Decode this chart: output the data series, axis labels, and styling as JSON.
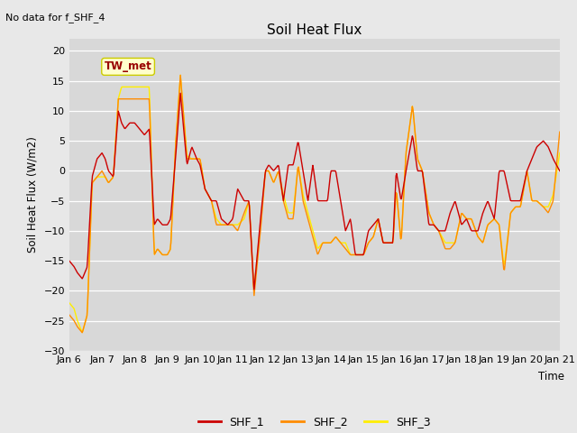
{
  "title": "Soil Heat Flux",
  "subtitle": "No data for f_SHF_4",
  "ylabel": "Soil Heat Flux (W/m2)",
  "xlabel": "Time",
  "ylim": [
    -30,
    22
  ],
  "yticks": [
    -30,
    -25,
    -20,
    -15,
    -10,
    -5,
    0,
    5,
    10,
    15,
    20
  ],
  "line_colors": {
    "SHF_1": "#cc0000",
    "SHF_2": "#ff8c00",
    "SHF_3": "#ffee00"
  },
  "xtick_labels": [
    "Jan 6",
    "Jan 7",
    "Jan 8",
    "Jan 9",
    "Jan 10",
    "Jan 11",
    "Jan 12",
    "Jan 13",
    "Jan 14",
    "Jan 15",
    "Jan 16",
    "Jan 17",
    "Jan 18",
    "Jan 19",
    "Jan 20",
    "Jan 21"
  ],
  "annotation_text": "TW_met",
  "annotation_color": "#990000",
  "annotation_box_facecolor": "#ffffcc",
  "annotation_box_edgecolor": "#cccc00",
  "background_color": "#e8e8e8",
  "plot_bg_color": "#d8d8d8",
  "figsize": [
    6.4,
    4.8
  ],
  "dpi": 100,
  "shf1_t": [
    0,
    0.15,
    0.25,
    0.4,
    0.55,
    0.7,
    0.85,
    1.0,
    1.1,
    1.2,
    1.35,
    1.5,
    1.6,
    1.7,
    1.85,
    2.0,
    2.15,
    2.3,
    2.45,
    2.6,
    2.7,
    2.85,
    3.0,
    3.1,
    3.25,
    3.4,
    3.6,
    3.75,
    3.9,
    4.0,
    4.15,
    4.35,
    4.5,
    4.65,
    4.85,
    5.0,
    5.15,
    5.35,
    5.5,
    5.65,
    5.85,
    6.0,
    6.1,
    6.25,
    6.4,
    6.55,
    6.7,
    6.85,
    7.0,
    7.15,
    7.3,
    7.45,
    7.6,
    7.75,
    7.9,
    8.0,
    8.15,
    8.3,
    8.45,
    8.6,
    8.75,
    8.9,
    9.0,
    9.15,
    9.3,
    9.45,
    9.6,
    9.75,
    9.9,
    10.0,
    10.15,
    10.3,
    10.5,
    10.65,
    10.8,
    11.0,
    11.15,
    11.3,
    11.5,
    11.65,
    11.8,
    12.0,
    12.15,
    12.3,
    12.5,
    12.65,
    12.8,
    13.0,
    13.15,
    13.3,
    13.5,
    13.65,
    13.8,
    14.0,
    14.15,
    14.3,
    14.5,
    14.65,
    14.8,
    15.0
  ],
  "shf1_v": [
    -15,
    -16,
    -17,
    -18,
    -16,
    -1,
    2,
    3,
    2,
    0,
    -1,
    10,
    8,
    7,
    8,
    8,
    7,
    6,
    7,
    -9,
    -8,
    -9,
    -9,
    -8,
    2,
    13,
    1,
    4,
    2,
    1,
    -3,
    -5,
    -5,
    -8,
    -9,
    -8,
    -3,
    -5,
    -5,
    -20,
    -8,
    0,
    1,
    0,
    1,
    -5,
    1,
    1,
    5,
    0,
    -5,
    1,
    -5,
    -5,
    -5,
    0,
    0,
    -5,
    -10,
    -8,
    -14,
    -14,
    -14,
    -10,
    -9,
    -8,
    -12,
    -12,
    -12,
    0,
    -5,
    0,
    6,
    0,
    0,
    -9,
    -9,
    -10,
    -10,
    -7,
    -5,
    -9,
    -8,
    -10,
    -10,
    -7,
    -5,
    -8,
    0,
    0,
    -5,
    -5,
    -5,
    0,
    2,
    4,
    5,
    4,
    2,
    0
  ],
  "shf2_t": [
    0,
    0.15,
    0.25,
    0.4,
    0.55,
    0.7,
    0.85,
    1.0,
    1.1,
    1.2,
    1.35,
    1.5,
    1.6,
    1.7,
    1.85,
    2.0,
    2.15,
    2.3,
    2.45,
    2.6,
    2.7,
    2.85,
    3.0,
    3.1,
    3.25,
    3.4,
    3.6,
    3.75,
    3.9,
    4.0,
    4.15,
    4.35,
    4.5,
    4.65,
    4.85,
    5.0,
    5.15,
    5.35,
    5.5,
    5.65,
    5.85,
    6.0,
    6.1,
    6.25,
    6.4,
    6.55,
    6.7,
    6.85,
    7.0,
    7.15,
    7.3,
    7.45,
    7.6,
    7.75,
    7.9,
    8.0,
    8.15,
    8.3,
    8.45,
    8.6,
    8.75,
    8.9,
    9.0,
    9.15,
    9.3,
    9.45,
    9.6,
    9.75,
    9.9,
    10.0,
    10.15,
    10.3,
    10.5,
    10.65,
    10.8,
    11.0,
    11.15,
    11.3,
    11.5,
    11.65,
    11.8,
    12.0,
    12.15,
    12.3,
    12.5,
    12.65,
    12.8,
    13.0,
    13.15,
    13.3,
    13.5,
    13.65,
    13.8,
    14.0,
    14.15,
    14.3,
    14.5,
    14.65,
    14.8,
    15.0
  ],
  "shf2_v": [
    -24,
    -25,
    -26,
    -27,
    -24,
    -2,
    -1,
    0,
    -1,
    -2,
    -1,
    12,
    12,
    12,
    12,
    12,
    12,
    12,
    12,
    -14,
    -13,
    -14,
    -14,
    -13,
    4,
    16,
    2,
    2,
    2,
    2,
    -3,
    -5,
    -9,
    -9,
    -9,
    -9,
    -10,
    -7,
    -5,
    -21,
    -10,
    0,
    0,
    -2,
    0,
    -5,
    -8,
    -8,
    1,
    -5,
    -8,
    -11,
    -14,
    -12,
    -12,
    -12,
    -11,
    -12,
    -13,
    -14,
    -14,
    -14,
    -14,
    -12,
    -11,
    -8,
    -12,
    -12,
    -12,
    -3,
    -12,
    3,
    11,
    2,
    0,
    -7,
    -9,
    -10,
    -13,
    -13,
    -12,
    -7,
    -8,
    -8,
    -11,
    -12,
    -9,
    -8,
    -9,
    -17,
    -7,
    -6,
    -6,
    0,
    -5,
    -5,
    -6,
    -7,
    -5,
    6.5
  ],
  "shf3_t": [
    0,
    0.15,
    0.25,
    0.4,
    0.55,
    0.7,
    0.85,
    1.0,
    1.1,
    1.2,
    1.35,
    1.5,
    1.6,
    1.7,
    1.85,
    2.0,
    2.15,
    2.3,
    2.45,
    2.6,
    2.7,
    2.85,
    3.0,
    3.1,
    3.25,
    3.4,
    3.6,
    3.75,
    3.9,
    4.0,
    4.15,
    4.35,
    4.5,
    4.65,
    4.85,
    5.0,
    5.15,
    5.35,
    5.5,
    5.65,
    5.85,
    6.0,
    6.1,
    6.25,
    6.4,
    6.55,
    6.7,
    6.85,
    7.0,
    7.15,
    7.3,
    7.45,
    7.6,
    7.75,
    7.9,
    8.0,
    8.15,
    8.3,
    8.45,
    8.6,
    8.75,
    8.9,
    9.0,
    9.15,
    9.3,
    9.45,
    9.6,
    9.75,
    9.9,
    10.0,
    10.15,
    10.3,
    10.5,
    10.65,
    10.8,
    11.0,
    11.15,
    11.3,
    11.5,
    11.65,
    11.8,
    12.0,
    12.15,
    12.3,
    12.5,
    12.65,
    12.8,
    13.0,
    13.15,
    13.3,
    13.5,
    13.65,
    13.8,
    14.0,
    14.15,
    14.3,
    14.5,
    14.65,
    14.8,
    15.0
  ],
  "shf3_v": [
    -22,
    -23,
    -25,
    -27,
    -24,
    -2,
    -1,
    -1,
    -1,
    -2,
    -1,
    12,
    14,
    14,
    14,
    14,
    14,
    14,
    14,
    -14,
    -13,
    -14,
    -14,
    -13,
    4,
    16,
    2.5,
    2,
    2,
    2,
    -3,
    -5,
    -8,
    -9,
    -9,
    -9,
    -9,
    -8,
    -5,
    -20,
    -9,
    0,
    0,
    -2,
    0,
    -4,
    -7,
    -7,
    1,
    -4,
    -7,
    -10,
    -13,
    -12,
    -12,
    -12,
    -11,
    -12,
    -12,
    -14,
    -14,
    -14,
    -14,
    -12,
    -11,
    -8,
    -12,
    -12,
    -12,
    -3,
    -12,
    3,
    11,
    2,
    0,
    -7,
    -9,
    -10,
    -12,
    -12,
    -12,
    -7,
    -8,
    -8,
    -11,
    -12,
    -9,
    -8,
    -9,
    -16,
    -7,
    -6,
    -6,
    0,
    -5,
    -5,
    -6,
    -6,
    -4,
    3
  ]
}
